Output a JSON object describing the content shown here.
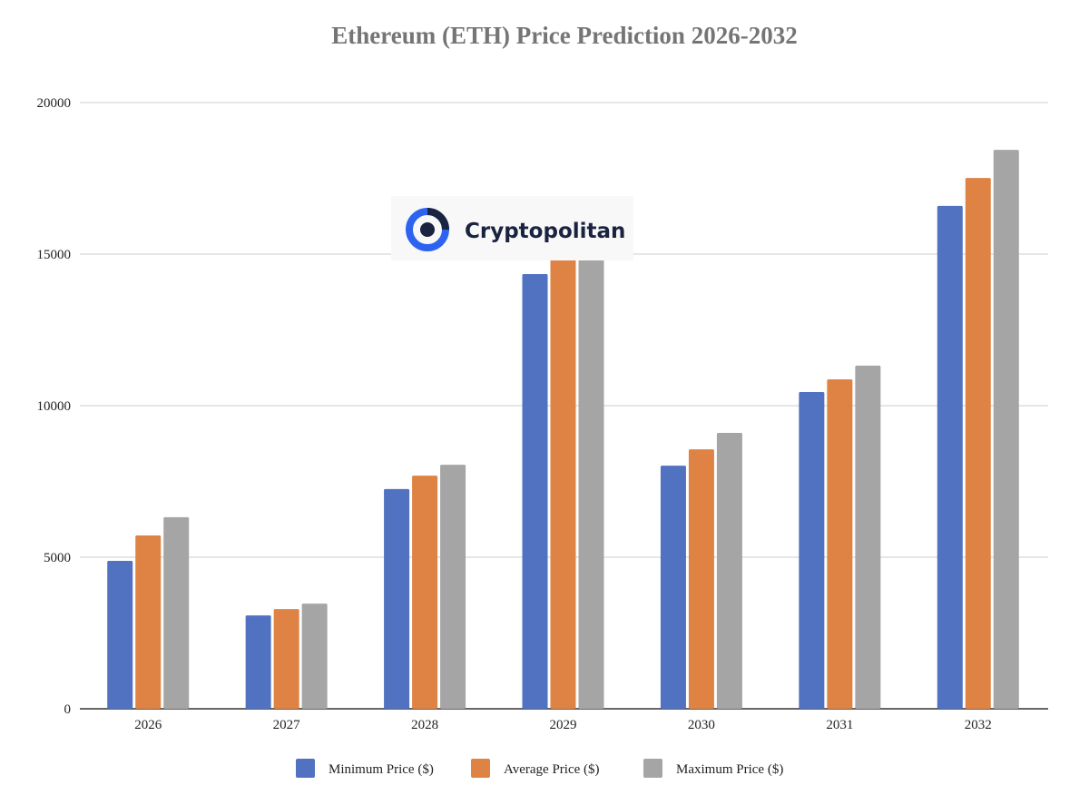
{
  "chart_data": {
    "type": "bar",
    "title": "Ethereum (ETH) Price Prediction 2026-2032",
    "xlabel": "",
    "ylabel": "",
    "categories": [
      "2026",
      "2027",
      "2028",
      "2029",
      "2030",
      "2031",
      "2032"
    ],
    "ylim": [
      0,
      20000
    ],
    "yticks": [
      0,
      5000,
      10000,
      15000,
      20000
    ],
    "grid": true,
    "legend": "bottom",
    "series": [
      {
        "name": "Minimum Price ($)",
        "color": "#5072c0",
        "values": [
          4880,
          3080,
          7250,
          14340,
          8020,
          10450,
          16590
        ]
      },
      {
        "name": "Average Price ($)",
        "color": "#df8344",
        "values": [
          5720,
          3290,
          7690,
          15200,
          8560,
          10870,
          17510
        ]
      },
      {
        "name": "Maximum Price ($)",
        "color": "#a5a5a5",
        "values": [
          6320,
          3470,
          8050,
          16000,
          9100,
          11320,
          18440
        ]
      }
    ]
  },
  "watermark": {
    "text": "Cryptopolitan"
  }
}
